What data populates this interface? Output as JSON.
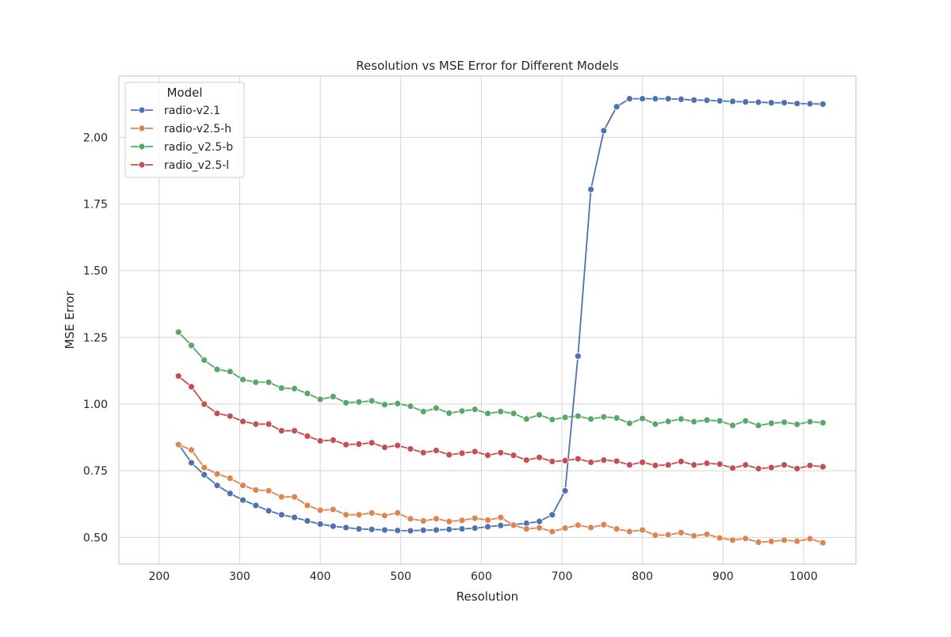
{
  "chart_data": {
    "type": "line",
    "title": "Resolution vs MSE Error for Different Models",
    "xlabel": "Resolution",
    "ylabel": "MSE Error",
    "xlim": [
      150,
      1065
    ],
    "ylim": [
      0.4,
      2.23
    ],
    "xticks": [
      200,
      300,
      400,
      500,
      600,
      700,
      800,
      900,
      1000
    ],
    "yticks": [
      0.5,
      0.75,
      1.0,
      1.25,
      1.5,
      1.75,
      2.0
    ],
    "ytick_labels": [
      "0.50",
      "0.75",
      "1.00",
      "1.25",
      "1.50",
      "1.75",
      "2.00"
    ],
    "grid": true,
    "legend_title": "Model",
    "legend_position": "top-left",
    "x": [
      224,
      240,
      256,
      272,
      288,
      304,
      320,
      336,
      352,
      368,
      384,
      400,
      416,
      432,
      448,
      464,
      480,
      496,
      512,
      528,
      544,
      560,
      576,
      592,
      608,
      624,
      640,
      656,
      672,
      688,
      704,
      720,
      736,
      752,
      768,
      784,
      800,
      816,
      832,
      848,
      864,
      880,
      896,
      912,
      928,
      944,
      960,
      976,
      992,
      1008,
      1024
    ],
    "series": [
      {
        "name": "radio-v2.1",
        "color": "#4c72b0",
        "values": [
          0.85,
          0.78,
          0.735,
          0.695,
          0.665,
          0.64,
          0.62,
          0.6,
          0.585,
          0.575,
          0.562,
          0.55,
          0.542,
          0.537,
          0.532,
          0.53,
          0.528,
          0.526,
          0.525,
          0.527,
          0.528,
          0.53,
          0.532,
          0.535,
          0.54,
          0.545,
          0.548,
          0.553,
          0.56,
          0.585,
          0.675,
          1.18,
          1.805,
          2.025,
          2.115,
          2.145,
          2.145,
          2.145,
          2.145,
          2.143,
          2.14,
          2.139,
          2.137,
          2.135,
          2.133,
          2.132,
          2.13,
          2.13,
          2.127,
          2.126,
          2.125
        ]
      },
      {
        "name": "radio-v2.5-h",
        "color": "#dd8452",
        "values": [
          0.848,
          0.828,
          0.762,
          0.738,
          0.722,
          0.695,
          0.678,
          0.675,
          0.652,
          0.652,
          0.62,
          0.602,
          0.605,
          0.585,
          0.585,
          0.592,
          0.582,
          0.592,
          0.57,
          0.562,
          0.57,
          0.56,
          0.564,
          0.572,
          0.565,
          0.575,
          0.546,
          0.532,
          0.536,
          0.522,
          0.535,
          0.546,
          0.537,
          0.548,
          0.532,
          0.522,
          0.528,
          0.508,
          0.51,
          0.518,
          0.506,
          0.512,
          0.498,
          0.49,
          0.496,
          0.482,
          0.485,
          0.49,
          0.486,
          0.495,
          0.48
        ]
      },
      {
        "name": "radio_v2.5-b",
        "color": "#55a868",
        "values": [
          1.27,
          1.22,
          1.165,
          1.13,
          1.122,
          1.092,
          1.082,
          1.082,
          1.06,
          1.058,
          1.04,
          1.018,
          1.028,
          1.005,
          1.008,
          1.012,
          0.998,
          1.002,
          0.992,
          0.972,
          0.985,
          0.966,
          0.974,
          0.98,
          0.965,
          0.972,
          0.965,
          0.944,
          0.96,
          0.942,
          0.95,
          0.955,
          0.944,
          0.952,
          0.948,
          0.928,
          0.946,
          0.925,
          0.935,
          0.944,
          0.934,
          0.94,
          0.937,
          0.92,
          0.937,
          0.92,
          0.928,
          0.932,
          0.924,
          0.934,
          0.93
        ]
      },
      {
        "name": "radio_v2.5-l",
        "color": "#c44e52",
        "values": [
          1.105,
          1.065,
          1.0,
          0.965,
          0.955,
          0.935,
          0.925,
          0.925,
          0.9,
          0.9,
          0.88,
          0.862,
          0.865,
          0.848,
          0.85,
          0.855,
          0.838,
          0.845,
          0.832,
          0.818,
          0.826,
          0.81,
          0.816,
          0.822,
          0.808,
          0.818,
          0.808,
          0.79,
          0.8,
          0.785,
          0.788,
          0.795,
          0.782,
          0.79,
          0.786,
          0.772,
          0.782,
          0.77,
          0.772,
          0.785,
          0.772,
          0.778,
          0.775,
          0.76,
          0.772,
          0.758,
          0.762,
          0.772,
          0.758,
          0.77,
          0.765
        ]
      }
    ]
  }
}
